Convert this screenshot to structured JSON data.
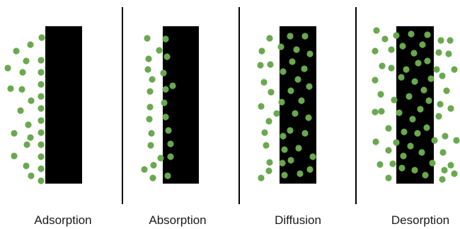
{
  "labels": {
    "adsorption": "Adsorption",
    "absorption": "Absorption",
    "diffusion": "Diffusion",
    "desorption": "Desorption"
  },
  "colors": {
    "particle": "#6aa84f",
    "solid": "#000000",
    "divider": "#000000",
    "background": "#ffffff"
  }
}
